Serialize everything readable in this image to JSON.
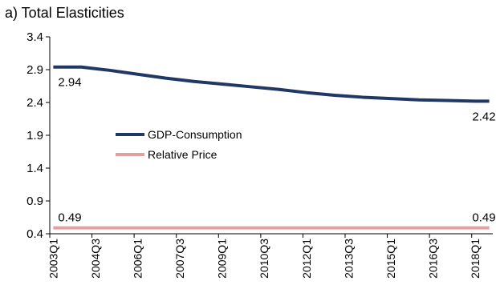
{
  "chart_data": {
    "type": "line",
    "title": "a) Total Elasticities",
    "ylim": [
      0.4,
      3.4
    ],
    "y_ticks": [
      "3.4",
      "2.9",
      "2.4",
      "1.9",
      "1.4",
      "0.9",
      "0.4"
    ],
    "y_tick_values": [
      3.4,
      2.9,
      2.4,
      1.9,
      1.4,
      0.9,
      0.4
    ],
    "x_tick_labels": [
      "2003Q1",
      "2004Q3",
      "2006Q1",
      "2007Q3",
      "2009Q1",
      "2010Q3",
      "2012Q1",
      "2013Q3",
      "2015Q1",
      "2016Q3",
      "2018Q1"
    ],
    "x_start": "2003Q1",
    "x_end": "2018Q3",
    "grid": false,
    "legend_position": "center-left",
    "series": [
      {
        "name": "GDP-Consumption",
        "color": "#1f3864",
        "points": [
          [
            "2003Q1",
            2.94
          ],
          [
            "2004Q1",
            2.94
          ],
          [
            "2005Q1",
            2.89
          ],
          [
            "2006Q1",
            2.83
          ],
          [
            "2007Q1",
            2.77
          ],
          [
            "2008Q1",
            2.72
          ],
          [
            "2009Q1",
            2.68
          ],
          [
            "2010Q1",
            2.64
          ],
          [
            "2011Q1",
            2.6
          ],
          [
            "2012Q1",
            2.55
          ],
          [
            "2013Q1",
            2.51
          ],
          [
            "2014Q1",
            2.48
          ],
          [
            "2015Q1",
            2.46
          ],
          [
            "2016Q1",
            2.44
          ],
          [
            "2017Q1",
            2.43
          ],
          [
            "2018Q1",
            2.42
          ],
          [
            "2018Q3",
            2.42
          ]
        ]
      },
      {
        "name": "Relative Price",
        "color": "#e3a0a0",
        "points": [
          [
            "2003Q1",
            0.49
          ],
          [
            "2018Q3",
            0.49
          ]
        ]
      }
    ],
    "annotations": [
      {
        "text": "2.94",
        "series": 0,
        "at": "2003Q1",
        "place": "below"
      },
      {
        "text": "2.42",
        "series": 0,
        "at": "2018Q3",
        "place": "below"
      },
      {
        "text": "0.49",
        "series": 1,
        "at": "2003Q1",
        "place": "above"
      },
      {
        "text": "0.49",
        "series": 1,
        "at": "2018Q3",
        "place": "above"
      }
    ]
  }
}
